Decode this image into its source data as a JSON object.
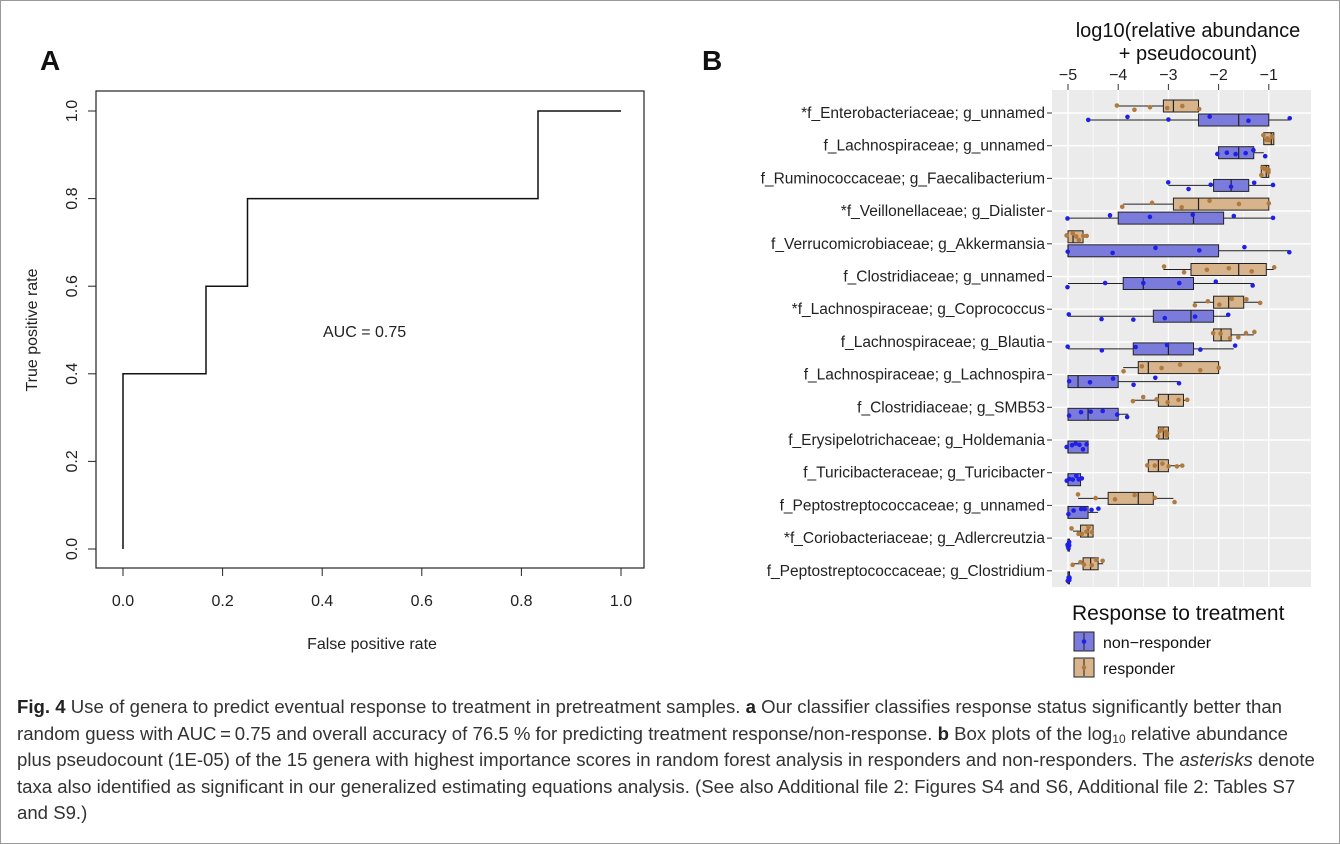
{
  "panel_a": {
    "label": "A",
    "auc_text": "AUC =  0.75"
  },
  "panel_b": {
    "label": "B",
    "axis_title_line1": "log10(relative abundance",
    "axis_title_line2": "+ pseudocount)",
    "legend_title": "Response to treatment",
    "legend_items": [
      "non−responder",
      "responder"
    ]
  },
  "colors": {
    "nonresponder_fill": "#7b7bdc",
    "nonresponder_point": "#1f1fe6",
    "responder_fill": "#d7b48c",
    "responder_point": "#b07a3e",
    "panel_bg": "#ebebeb",
    "grid": "#ffffff"
  },
  "chart_data": [
    {
      "type": "line",
      "title": "",
      "xlabel": "False positive rate",
      "ylabel": "True positive rate",
      "xlim": [
        0,
        1
      ],
      "ylim": [
        0,
        1
      ],
      "x_ticks": [
        "0.0",
        "0.2",
        "0.4",
        "0.6",
        "0.8",
        "1.0"
      ],
      "y_ticks": [
        "0.0",
        "0.2",
        "0.4",
        "0.6",
        "0.8",
        "1.0"
      ],
      "series": [
        {
          "x": [
            0,
            0,
            0.1667,
            0.1667,
            0.25,
            0.25,
            0.8333,
            0.8333,
            1.0
          ],
          "y": [
            0,
            0.4,
            0.4,
            0.6,
            0.6,
            0.8,
            0.8,
            1.0,
            1.0
          ]
        }
      ],
      "annotation": "AUC =  0.75"
    },
    {
      "type": "box",
      "title": "",
      "xlabel": "log10(relative abundance + pseudocount)",
      "x_ticks": [
        "−5",
        "−4",
        "−3",
        "−2",
        "−1"
      ],
      "xlim": [
        -5.05,
        -0.45
      ],
      "grid": true,
      "legend_title": "Response to treatment",
      "legend_position": "bottom-right",
      "categories": [
        "*f_Enterobacteriaceae; g_unnamed",
        "f_Lachnospiraceae; g_unnamed",
        "f_Ruminococcaceae; g_Faecalibacterium",
        "*f_Veillonellaceae; g_Dialister",
        "f_Verrucomicrobiaceae; g_Akkermansia",
        "f_Clostridiaceae; g_unnamed",
        "*f_Lachnospiraceae; g_Coprococcus",
        "f_Lachnospiraceae; g_Blautia",
        "f_Lachnospiraceae; g_Lachnospira",
        "f_Clostridiaceae; g_SMB53",
        "f_Erysipelotrichaceae; g_Holdemania",
        "f_Turicibacteraceae; g_Turicibacter",
        "f_Peptostreptococcaceae; g_unnamed",
        "*f_Coriobacteriaceae; g_Adlercreutzia",
        "f_Peptostreptococcaceae; g_Clostridium"
      ],
      "series": [
        {
          "name": "non−responder",
          "boxes": [
            {
              "min": -4.6,
              "q1": -2.4,
              "median": -1.6,
              "q3": -1.0,
              "max": -0.6
            },
            {
              "min": -2.0,
              "q1": -2.0,
              "median": -1.6,
              "q3": -1.3,
              "max": -1.1
            },
            {
              "min": -3.0,
              "q1": -2.1,
              "median": -1.75,
              "q3": -1.4,
              "max": -0.9
            },
            {
              "min": -5.0,
              "q1": -4.0,
              "median": -2.5,
              "q3": -1.9,
              "max": -0.9
            },
            {
              "min": -5.0,
              "q1": -5.0,
              "median": -5.0,
              "q3": -2.0,
              "max": -0.6
            },
            {
              "min": -5.0,
              "q1": -3.9,
              "median": -3.5,
              "q3": -2.5,
              "max": -1.3
            },
            {
              "min": -5.0,
              "q1": -3.3,
              "median": -2.55,
              "q3": -2.1,
              "max": -1.8
            },
            {
              "min": -5.0,
              "q1": -3.7,
              "median": -3.0,
              "q3": -2.5,
              "max": -1.7
            },
            {
              "min": -5.0,
              "q1": -5.0,
              "median": -4.8,
              "q3": -4.0,
              "max": -2.8
            },
            {
              "min": -5.0,
              "q1": -5.0,
              "median": -4.6,
              "q3": -4.0,
              "max": -3.8
            },
            {
              "min": -5.0,
              "q1": -5.0,
              "median": -5.0,
              "q3": -4.6,
              "max": -4.6
            },
            {
              "min": -5.0,
              "q1": -5.0,
              "median": -5.0,
              "q3": -4.75,
              "max": -4.75
            },
            {
              "min": -5.0,
              "q1": -5.0,
              "median": -5.0,
              "q3": -4.6,
              "max": -4.4
            },
            {
              "min": -5.0,
              "q1": -5.0,
              "median": -5.0,
              "q3": -5.0,
              "max": -5.0
            },
            {
              "min": -5.0,
              "q1": -5.0,
              "median": -5.0,
              "q3": -5.0,
              "max": -5.0
            }
          ]
        },
        {
          "name": "responder",
          "boxes": [
            {
              "min": -4.0,
              "q1": -3.1,
              "median": -2.9,
              "q3": -2.4,
              "max": -2.4
            },
            {
              "min": -1.1,
              "q1": -1.1,
              "median": -0.95,
              "q3": -0.9,
              "max": -0.9
            },
            {
              "min": -1.15,
              "q1": -1.15,
              "median": -1.05,
              "q3": -1.0,
              "max": -1.0
            },
            {
              "min": -3.9,
              "q1": -2.9,
              "median": -2.4,
              "q3": -1.0,
              "max": -1.0
            },
            {
              "min": -5.0,
              "q1": -5.0,
              "median": -4.9,
              "q3": -4.7,
              "max": -4.6
            },
            {
              "min": -3.1,
              "q1": -2.55,
              "median": -1.6,
              "q3": -1.05,
              "max": -0.9
            },
            {
              "min": -2.5,
              "q1": -2.1,
              "median": -1.8,
              "q3": -1.5,
              "max": -1.2
            },
            {
              "min": -2.1,
              "q1": -2.1,
              "median": -1.95,
              "q3": -1.75,
              "max": -1.3
            },
            {
              "min": -3.9,
              "q1": -3.6,
              "median": -3.4,
              "q3": -2.0,
              "max": -2.0
            },
            {
              "min": -3.7,
              "q1": -3.2,
              "median": -3.0,
              "q3": -2.7,
              "max": -2.6
            },
            {
              "min": -3.2,
              "q1": -3.2,
              "median": -3.1,
              "q3": -3.0,
              "max": -3.0
            },
            {
              "min": -3.4,
              "q1": -3.4,
              "median": -3.2,
              "q3": -3.0,
              "max": -2.7
            },
            {
              "min": -4.8,
              "q1": -4.2,
              "median": -3.6,
              "q3": -3.3,
              "max": -2.9
            },
            {
              "min": -4.9,
              "q1": -4.75,
              "median": -4.6,
              "q3": -4.5,
              "max": -4.5
            },
            {
              "min": -4.9,
              "q1": -4.7,
              "median": -4.55,
              "q3": -4.4,
              "max": -4.3
            }
          ]
        }
      ]
    }
  ],
  "caption": {
    "fig_label": "Fig. 4",
    "intro": " Use of genera to predict eventual response to treatment in pretreatment samples. ",
    "a_label": "a",
    "a_text": " Our classifier classifies response status significantly better than random guess with AUC = 0.75 and overall accuracy of 76.5 % for predicting treatment response/non-response. ",
    "b_label": "b",
    "b_text_1": " Box plots of the log",
    "b_sub": "10",
    "b_text_2": " relative abundance plus pseudocount (1E-05) of the 15 genera with highest importance scores in random forest analysis in responders and non-responders. The ",
    "b_italic": "asterisks",
    "b_text_3": " denote taxa also identified as significant in our generalized estimating equations analysis. (See also Additional file 2: Figures S4 and S6, Additional file 2: Tables S7 and S9.)"
  }
}
